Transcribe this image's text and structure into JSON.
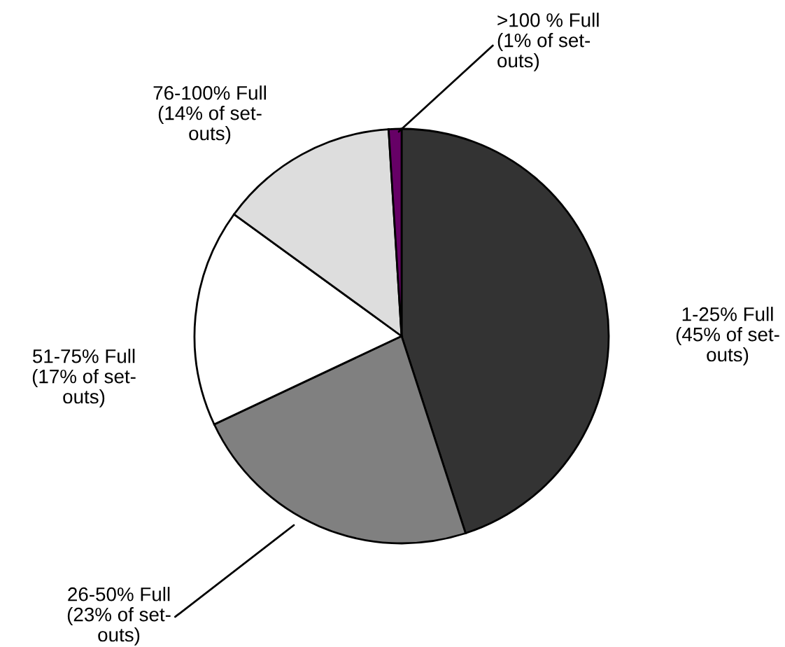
{
  "chart_data": {
    "type": "pie",
    "categories": [
      "1-25% Full",
      "26-50% Full",
      "51-75% Full",
      "76-100% Full",
      ">100 % Full"
    ],
    "values": [
      45,
      23,
      17,
      14,
      1
    ],
    "colors": [
      "#333333",
      "#808080",
      "#ffffff",
      "#dddddd",
      "#660066"
    ],
    "value_labels": [
      "(45% of set-\nouts)",
      "(23% of set-\nouts)",
      "(17% of set-\nouts)",
      "(14% of set-\nouts)",
      "(1% of set-\nouts)"
    ]
  }
}
